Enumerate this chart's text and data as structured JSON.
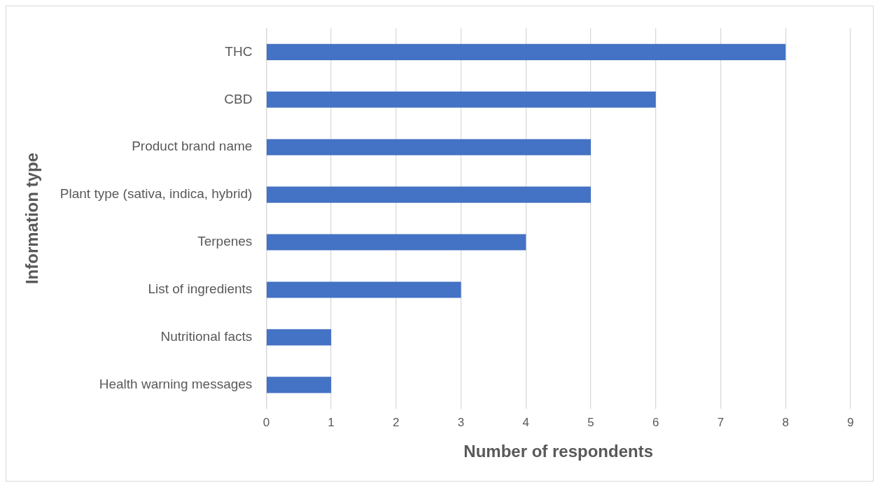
{
  "chart_data": {
    "type": "bar",
    "orientation": "horizontal",
    "xlabel": "Number of respondents",
    "ylabel": "Information type",
    "categories": [
      "THC",
      "CBD",
      "Product brand name",
      "Plant type (sativa, indica, hybrid)",
      "Terpenes",
      "List of ingredients",
      "Nutritional facts",
      "Health warning messages"
    ],
    "values": [
      8,
      6,
      5,
      5,
      4,
      3,
      1,
      1
    ],
    "color": "#4472c4",
    "xlim": [
      0,
      9
    ],
    "xticks": [
      0,
      1,
      2,
      3,
      4,
      5,
      6,
      7,
      8,
      9
    ],
    "grid": "x",
    "legend": false
  }
}
